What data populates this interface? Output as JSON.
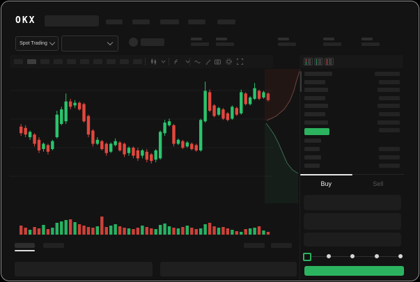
{
  "header": {
    "logo_text": "OKX",
    "nav_skeleton_count": 5,
    "search_placeholder": ""
  },
  "market_bar": {
    "pair_selector_label": "Spot Trading",
    "stat_group_count": 5
  },
  "chart_toolbar": {
    "timeframe_count": 10,
    "selected_timeframe_index": 1,
    "icons": [
      "candle-style-icon",
      "chevron-down-icon",
      "indicator-icon",
      "chevron-down-icon",
      "line-tool-icon",
      "draw-icon",
      "camera-icon",
      "settings-icon",
      "fullscreen-icon"
    ]
  },
  "chart_data": {
    "type": "candlestick",
    "title": "",
    "xlabel": "",
    "ylabel": "",
    "ylim": [
      0,
      100
    ],
    "grid": true,
    "up_color": "#2bc46d",
    "down_color": "#e2483e",
    "candles_ohlc_as_o_c_l_h": [
      [
        58,
        53,
        51,
        60
      ],
      [
        57,
        52,
        50,
        59
      ],
      [
        50,
        54,
        48,
        55
      ],
      [
        52,
        45,
        43,
        53
      ],
      [
        48,
        40,
        38,
        50
      ],
      [
        41,
        45,
        39,
        46
      ],
      [
        44,
        39,
        37,
        45
      ],
      [
        41,
        47,
        40,
        48
      ],
      [
        50,
        67,
        49,
        70
      ],
      [
        60,
        71,
        59,
        73
      ],
      [
        62,
        77,
        60,
        83
      ],
      [
        77,
        73,
        71,
        79
      ],
      [
        74,
        76,
        72,
        78
      ],
      [
        76,
        71,
        70,
        77
      ],
      [
        75,
        62,
        61,
        76
      ],
      [
        66,
        52,
        50,
        67
      ],
      [
        55,
        45,
        43,
        56
      ],
      [
        45,
        48,
        44,
        50
      ],
      [
        47,
        41,
        40,
        48
      ],
      [
        45,
        38,
        36,
        46
      ],
      [
        39,
        45,
        38,
        46
      ],
      [
        44,
        47,
        43,
        49
      ],
      [
        46,
        40,
        39,
        47
      ],
      [
        45,
        37,
        35,
        46
      ],
      [
        38,
        42,
        36,
        43
      ],
      [
        42,
        36,
        34,
        43
      ],
      [
        40,
        34,
        32,
        42
      ],
      [
        36,
        40,
        34,
        41
      ],
      [
        39,
        33,
        31,
        41
      ],
      [
        37,
        32,
        30,
        38
      ],
      [
        33,
        40,
        31,
        41
      ],
      [
        34,
        54,
        33,
        55
      ],
      [
        53,
        61,
        51,
        63
      ],
      [
        59,
        62,
        58,
        64
      ],
      [
        59,
        45,
        43,
        60
      ],
      [
        45,
        48,
        44,
        49
      ],
      [
        47,
        42,
        41,
        48
      ],
      [
        43,
        46,
        42,
        47
      ],
      [
        45,
        41,
        40,
        46
      ],
      [
        44,
        40,
        39,
        45
      ],
      [
        40,
        63,
        39,
        64
      ],
      [
        62,
        85,
        61,
        92
      ],
      [
        84,
        70,
        69,
        86
      ],
      [
        74,
        66,
        65,
        75
      ],
      [
        67,
        72,
        66,
        73
      ],
      [
        71,
        64,
        63,
        72
      ],
      [
        68,
        63,
        62,
        69
      ],
      [
        64,
        73,
        63,
        74
      ],
      [
        72,
        67,
        66,
        73
      ],
      [
        68,
        84,
        67,
        86
      ],
      [
        83,
        75,
        74,
        84
      ],
      [
        75,
        80,
        74,
        81
      ],
      [
        79,
        87,
        78,
        91
      ],
      [
        85,
        79,
        78,
        86
      ],
      [
        80,
        84,
        79,
        85
      ],
      [
        83,
        78,
        77,
        84
      ]
    ],
    "volumes": [
      13,
      10,
      7,
      11,
      9,
      14,
      8,
      10,
      17,
      19,
      21,
      22,
      18,
      15,
      13,
      11,
      10,
      12,
      26,
      11,
      13,
      15,
      12,
      10,
      9,
      8,
      10,
      13,
      11,
      9,
      8,
      14,
      16,
      12,
      10,
      9,
      11,
      13,
      10,
      8,
      9,
      15,
      17,
      12,
      10,
      11,
      9,
      7,
      5,
      4,
      8,
      9,
      10,
      12,
      6,
      4
    ]
  },
  "depth_chart": {
    "ask_fill": "rgba(120,45,40,0.16)",
    "ask_line": "#6e4340",
    "bid_fill": "rgba(35,95,60,0.16)",
    "bid_line": "#3c6b52",
    "asks_curve": [
      [
        51,
        3
      ],
      [
        46,
        18
      ],
      [
        42,
        33
      ],
      [
        36,
        48
      ],
      [
        28,
        60
      ],
      [
        16,
        70
      ],
      [
        3,
        76
      ]
    ],
    "bids_curve": [
      [
        2,
        80
      ],
      [
        8,
        88
      ],
      [
        14,
        97
      ],
      [
        20,
        109
      ],
      [
        26,
        123
      ],
      [
        32,
        137
      ],
      [
        40,
        147
      ],
      [
        48,
        152
      ]
    ]
  },
  "order_book": {
    "view_mode_icons": [
      "book-both-icon",
      "book-bids-icon",
      "book-asks-icon"
    ],
    "ask_row_count": 7,
    "bid_row_count": 4,
    "last_price_color": "#2cb35f"
  },
  "trade_panel": {
    "tabs": {
      "buy": "Buy",
      "sell": "Sell"
    },
    "active_tab": "Buy",
    "field_count": 3,
    "slider_stop_count": 5,
    "slider_value_index": 0,
    "submit_label": "",
    "submit_color": "#2cb35f"
  },
  "bottom_bar": {
    "tab_skeleton_count": 2,
    "right_skeleton_count": 2,
    "panel_count": 2
  },
  "colors": {
    "background": "#131313",
    "green": "#2cb35f",
    "red": "#e2483e"
  }
}
